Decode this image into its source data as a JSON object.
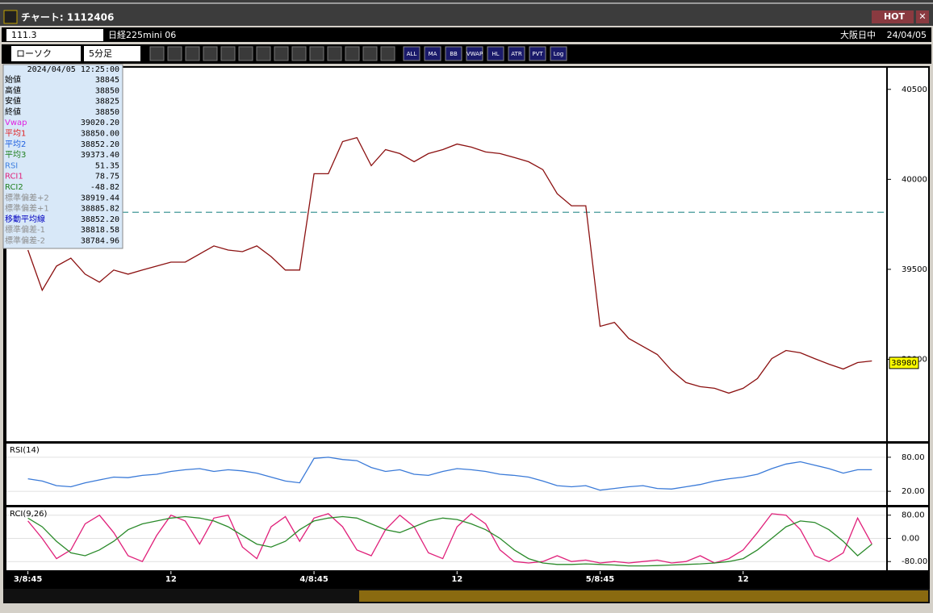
{
  "window": {
    "title": "チャート: 1112406",
    "hot": "HOT"
  },
  "toolbar1": {
    "code": "111.3",
    "name": "日経225mini 06",
    "session": "大阪日中",
    "date": "24/04/05"
  },
  "toolbar2": {
    "chart_type": "ローソク",
    "interval": "5分足",
    "buttons": [
      "ALL",
      "MA",
      "BB",
      "VWAP",
      "HL",
      "ATR",
      "PVT",
      "Log"
    ]
  },
  "info": {
    "datetime": "2024/04/05  12:25:00",
    "rows": [
      {
        "label": "始値",
        "value": "38845",
        "color": "#000000"
      },
      {
        "label": "高値",
        "value": "38850",
        "color": "#000000"
      },
      {
        "label": "安値",
        "value": "38825",
        "color": "#000000"
      },
      {
        "label": "終値",
        "value": "38850",
        "color": "#000000"
      },
      {
        "label": "Vwap",
        "value": "39020.20",
        "color": "#e020e0"
      },
      {
        "label": "平均1",
        "value": "38850.00",
        "color": "#e02020"
      },
      {
        "label": "平均2",
        "value": "38852.20",
        "color": "#2060e0"
      },
      {
        "label": "平均3",
        "value": "39373.40",
        "color": "#208020"
      },
      {
        "label": "RSI",
        "value": "51.35",
        "color": "#4080e0"
      },
      {
        "label": "RCI1",
        "value": "78.75",
        "color": "#e0207a"
      },
      {
        "label": "RCI2",
        "value": "-48.82",
        "color": "#208020"
      },
      {
        "label": "標準偏差+2",
        "value": "38919.44",
        "color": "#909090"
      },
      {
        "label": "標準偏差+1",
        "value": "38885.82",
        "color": "#909090"
      },
      {
        "label": "移動平均線",
        "value": "38852.20",
        "color": "#0000c0"
      },
      {
        "label": "標準偏差-1",
        "value": "38818.58",
        "color": "#909090"
      },
      {
        "label": "標準偏差-2",
        "value": "38784.96",
        "color": "#909090"
      }
    ]
  },
  "chart_data": [
    {
      "type": "line",
      "xlim": [
        -1.5,
        60
      ],
      "ylim": [
        38545,
        40620
      ],
      "yticks": [
        39000,
        39500,
        40000,
        40500
      ],
      "xticks": [
        {
          "value": 0,
          "label": "3/8:45"
        },
        {
          "value": 10,
          "label": "12"
        },
        {
          "value": 20,
          "label": "4/8:45"
        },
        {
          "value": 30,
          "label": "12"
        },
        {
          "value": 40,
          "label": "5/8:45"
        },
        {
          "value": 50,
          "label": "12"
        }
      ],
      "hline": 39817,
      "hline_color": "#2a8a8a",
      "last_price": 38980,
      "series": [
        {
          "color": "#8b1010",
          "values": [
            39607,
            39384,
            39518,
            39562,
            39473,
            39429,
            39496,
            39473,
            39496,
            39518,
            39540,
            39540,
            39585,
            39630,
            39607,
            39598,
            39630,
            39571,
            39496,
            39496,
            40031,
            40031,
            40210,
            40232,
            40076,
            40165,
            40143,
            40098,
            40143,
            40165,
            40196,
            40179,
            40152,
            40143,
            40121,
            40098,
            40054,
            39920,
            39853,
            39853,
            39183,
            39205,
            39116,
            39071,
            39027,
            38938,
            38871,
            38848,
            38839,
            38812,
            38839,
            38893,
            39004,
            39049,
            39036,
            39004,
            38973,
            38946,
            38982,
            38991
          ]
        }
      ]
    },
    {
      "type": "line",
      "title": "RSI(14)",
      "xlim": [
        -1.5,
        60
      ],
      "ylim": [
        -4,
        104
      ],
      "yticks": [
        {
          "value": 80,
          "label": "80.00"
        },
        {
          "value": 20,
          "label": "20.00"
        }
      ],
      "grid": true,
      "series": [
        {
          "color": "#3a7ad8",
          "values": [
            42,
            38,
            30,
            28,
            35,
            40,
            45,
            44,
            48,
            50,
            55,
            58,
            60,
            55,
            58,
            56,
            52,
            45,
            38,
            35,
            78,
            80,
            76,
            74,
            62,
            55,
            58,
            50,
            48,
            55,
            60,
            58,
            55,
            50,
            48,
            45,
            38,
            30,
            28,
            30,
            22,
            25,
            28,
            30,
            25,
            24,
            28,
            32,
            38,
            42,
            45,
            50,
            60,
            68,
            72,
            66,
            60,
            52,
            58,
            58
          ]
        }
      ]
    },
    {
      "type": "line",
      "title": "RCI(9,26)",
      "xlim": [
        -1.5,
        60
      ],
      "ylim": [
        -110,
        107
      ],
      "yticks": [
        {
          "value": 80,
          "label": "80.00"
        },
        {
          "value": 0,
          "label": "0.00"
        },
        {
          "value": -80,
          "label": "-80.00"
        }
      ],
      "grid": true,
      "series": [
        {
          "color": "#e0207a",
          "values": [
            60,
            0,
            -70,
            -40,
            50,
            80,
            20,
            -60,
            -80,
            10,
            80,
            60,
            -20,
            70,
            80,
            -30,
            -70,
            40,
            75,
            -10,
            70,
            85,
            40,
            -40,
            -60,
            30,
            80,
            40,
            -50,
            -70,
            40,
            85,
            50,
            -40,
            -80,
            -85,
            -80,
            -60,
            -80,
            -75,
            -85,
            -80,
            -85,
            -80,
            -75,
            -85,
            -80,
            -60,
            -85,
            -70,
            -40,
            20,
            85,
            80,
            30,
            -60,
            -80,
            -50,
            70,
            -20
          ]
        },
        {
          "color": "#2a8a2a",
          "values": [
            70,
            40,
            -10,
            -50,
            -60,
            -40,
            -10,
            30,
            50,
            60,
            70,
            75,
            70,
            60,
            40,
            10,
            -20,
            -30,
            -10,
            30,
            60,
            70,
            75,
            70,
            50,
            30,
            20,
            40,
            60,
            70,
            65,
            50,
            30,
            0,
            -40,
            -70,
            -85,
            -90,
            -90,
            -88,
            -90,
            -92,
            -95,
            -95,
            -94,
            -92,
            -90,
            -88,
            -85,
            -80,
            -70,
            -40,
            0,
            40,
            60,
            55,
            30,
            -10,
            -60,
            -20
          ]
        }
      ]
    }
  ]
}
